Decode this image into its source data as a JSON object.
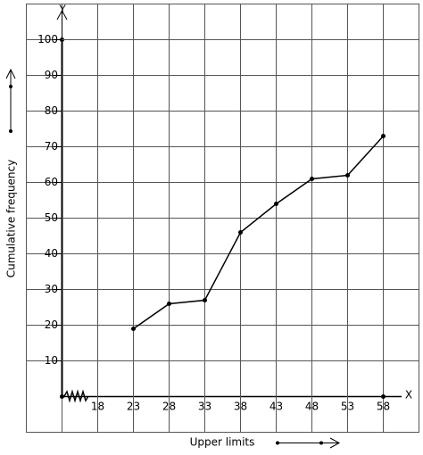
{
  "chart_data": {
    "type": "line",
    "y_label": "Cumulative frequency",
    "x_label": "Upper limits",
    "y_axis_name": "Y",
    "x_axis_name": "X",
    "x": [
      23,
      28,
      33,
      38,
      43,
      48,
      53,
      58
    ],
    "values": [
      19,
      26,
      27,
      46,
      54,
      61,
      62,
      73
    ],
    "color": "#000000",
    "xlim": [
      13,
      63
    ],
    "xticks": [
      18,
      23,
      28,
      33,
      38,
      43,
      48,
      53,
      58
    ],
    "ylim": [
      -10,
      110
    ],
    "yticks": [
      10,
      20,
      30,
      40,
      50,
      60,
      70,
      80,
      90,
      100
    ],
    "grid": true,
    "x_axis_break": true
  }
}
